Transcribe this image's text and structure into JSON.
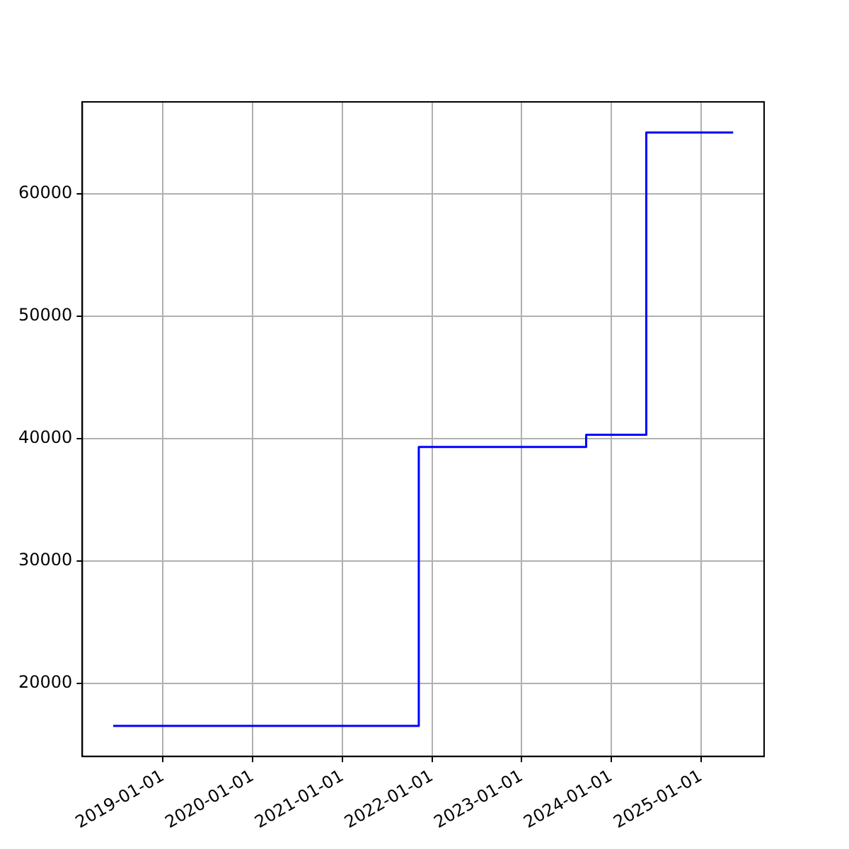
{
  "chart_data": {
    "type": "step",
    "x": [
      "2018-06-12",
      "2021-11-08",
      "2023-09-21",
      "2024-05-23",
      "2025-05-12"
    ],
    "series": [
      {
        "color": "#0000ff",
        "values": [
          16500,
          39300,
          40300,
          65000,
          65000
        ]
      }
    ],
    "xlim": [
      "2018-02-06",
      "2025-09-15"
    ],
    "xticks": [
      "2019-01-01",
      "2020-01-01",
      "2021-01-01",
      "2022-01-01",
      "2023-01-01",
      "2024-01-01",
      "2025-01-01"
    ],
    "ylim": [
      14000,
      67500
    ],
    "yticks": [
      20000,
      30000,
      40000,
      50000,
      60000
    ],
    "grid": true,
    "legend": false
  }
}
